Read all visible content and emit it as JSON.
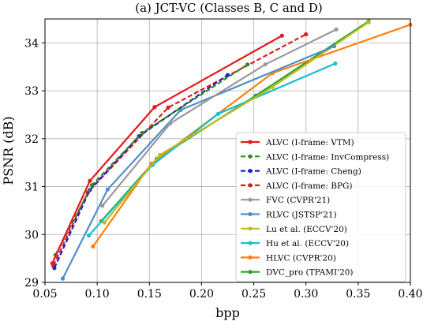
{
  "chart_data": {
    "type": "line",
    "title": "(a) JCT-VC (Classes B, C and D)",
    "xlabel": "bpp",
    "ylabel": "PSNR (dB)",
    "xlim": [
      0.05,
      0.4
    ],
    "ylim": [
      29,
      34.5
    ],
    "xticks": [
      0.05,
      0.1,
      0.15,
      0.2,
      0.25,
      0.3,
      0.35,
      0.4
    ],
    "xtick_labels": [
      "0.05",
      "0.10",
      "0.15",
      "0.20",
      "0.25",
      "0.30",
      "0.35",
      "0.40"
    ],
    "yticks": [
      29,
      30,
      31,
      32,
      33,
      34
    ],
    "ytick_labels": [
      "29",
      "30",
      "31",
      "32",
      "33",
      "34"
    ],
    "grid": true,
    "legend_position": "lower-right",
    "series": [
      {
        "name": "ALVC (I-frame: VTM)",
        "color": "#e41a1c",
        "dashed": false,
        "x": [
          0.057,
          0.093,
          0.155,
          0.277
        ],
        "y": [
          29.4,
          31.12,
          32.66,
          34.15
        ]
      },
      {
        "name": "ALVC (I-frame: InvCompress)",
        "color": "#2e8b22",
        "dashed": true,
        "x": [
          0.06,
          0.095,
          0.143,
          0.244
        ],
        "y": [
          29.57,
          31.03,
          32.12,
          33.55
        ]
      },
      {
        "name": "ALVC (I-frame: Cheng)",
        "color": "#1f1fd6",
        "dashed": true,
        "x": [
          0.059,
          0.093,
          0.14,
          0.225
        ],
        "y": [
          29.3,
          30.93,
          32.05,
          33.33
        ]
      },
      {
        "name": "ALVC (I-frame: BPG)",
        "color": "#e41a1c",
        "dashed": true,
        "x": [
          0.058,
          0.091,
          0.168,
          0.3
        ],
        "y": [
          29.35,
          30.88,
          32.65,
          34.18
        ]
      },
      {
        "name": "FVC (CVPR'21)",
        "color": "#999999",
        "dashed": false,
        "x": [
          0.105,
          0.17,
          0.261,
          0.329
        ],
        "y": [
          30.6,
          32.32,
          33.55,
          34.28
        ]
      },
      {
        "name": "RLVC (JSTSP'21)",
        "color": "#4f8ec9",
        "dashed": false,
        "x": [
          0.067,
          0.11,
          0.18,
          0.327
        ],
        "y": [
          29.08,
          30.94,
          32.6,
          33.93
        ]
      },
      {
        "name": "Lu et al. (ECCV'20)",
        "color": "#bcbd22",
        "dashed": false,
        "x": [
          0.107,
          0.16,
          0.268,
          0.36
        ],
        "y": [
          30.25,
          31.66,
          33.08,
          34.43
        ]
      },
      {
        "name": "Hu et al. (ECCV'20)",
        "color": "#17becf",
        "dashed": false,
        "x": [
          0.092,
          0.153,
          0.216,
          0.328
        ],
        "y": [
          29.98,
          31.45,
          32.52,
          33.57
        ]
      },
      {
        "name": "HLVC (CVPR'20)",
        "color": "#ff7f0e",
        "dashed": false,
        "x": [
          0.096,
          0.152,
          0.268,
          0.4
        ],
        "y": [
          29.75,
          31.48,
          33.37,
          34.38
        ]
      },
      {
        "name": "DVC_pro (TPAMI'20)",
        "color": "#2ca02c",
        "dashed": false,
        "x": [
          0.104,
          0.157,
          0.252,
          0.36
        ],
        "y": [
          30.28,
          31.58,
          32.9,
          34.45
        ]
      }
    ]
  }
}
